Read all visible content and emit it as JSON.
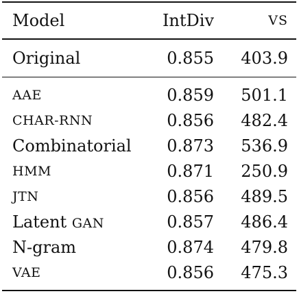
{
  "table": {
    "headers": {
      "model": "Model",
      "intdiv": "IntDiv",
      "vs": "VS"
    },
    "original": {
      "model": "Original",
      "intdiv": "0.855",
      "vs": "403.9"
    },
    "rows": [
      {
        "model": "AAE",
        "intdiv": "0.859",
        "vs": "501.1"
      },
      {
        "model": "CHAR-RNN",
        "intdiv": "0.856",
        "vs": "482.4"
      },
      {
        "model": "Combinatorial",
        "intdiv": "0.873",
        "vs": "536.9"
      },
      {
        "model": "HMM",
        "intdiv": "0.871",
        "vs": "250.9"
      },
      {
        "model": "JTN",
        "intdiv": "0.856",
        "vs": "489.5"
      },
      {
        "model": "Latent GAN",
        "model_part1": "Latent",
        "model_part2": "GAN",
        "intdiv": "0.857",
        "vs": "486.4"
      },
      {
        "model": "N-gram",
        "intdiv": "0.874",
        "vs": "479.8"
      },
      {
        "model": "VAE",
        "intdiv": "0.856",
        "vs": "475.3"
      }
    ]
  }
}
